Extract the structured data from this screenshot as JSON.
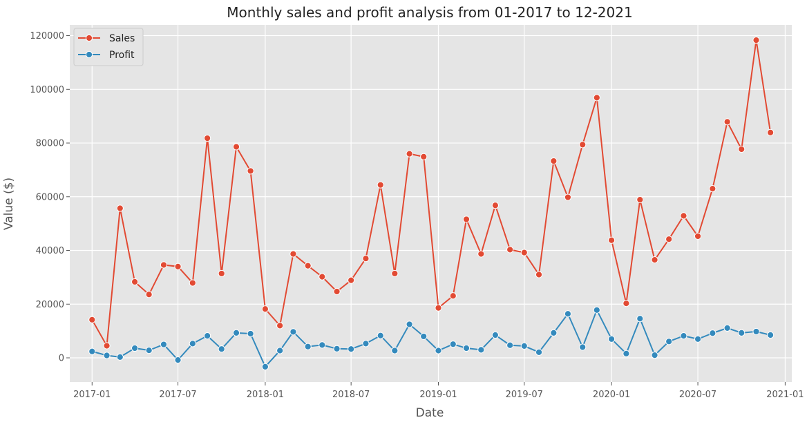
{
  "chart_data": {
    "type": "line",
    "title": "Monthly sales and profit analysis from 01-2017 to 12-2021",
    "xlabel": "Date",
    "ylabel": "Value ($)",
    "x_axis": {
      "kind": "date",
      "range": [
        "2016-11-15",
        "2021-01-15"
      ],
      "ticks": [
        "2017-01-01",
        "2017-07-01",
        "2018-01-01",
        "2018-07-01",
        "2019-01-01",
        "2019-07-01",
        "2020-01-01",
        "2020-07-01",
        "2021-01-01"
      ],
      "tick_labels": [
        "2017-01",
        "2017-07",
        "2018-01",
        "2018-07",
        "2019-01",
        "2019-07",
        "2020-01",
        "2020-07",
        "2021-01"
      ]
    },
    "y_axis": {
      "range": [
        -9000,
        124000
      ],
      "ticks": [
        0,
        20000,
        40000,
        60000,
        80000,
        100000,
        120000
      ],
      "tick_labels": [
        "0",
        "20000",
        "40000",
        "60000",
        "80000",
        "100000",
        "120000"
      ]
    },
    "grid": true,
    "legend": {
      "position": "top-left",
      "entries": [
        "Sales",
        "Profit"
      ]
    },
    "x": [
      "2017-01-01",
      "2017-02-01",
      "2017-03-01",
      "2017-04-01",
      "2017-05-01",
      "2017-06-01",
      "2017-07-01",
      "2017-08-01",
      "2017-09-01",
      "2017-10-01",
      "2017-11-01",
      "2017-12-01",
      "2018-01-01",
      "2018-02-01",
      "2018-03-01",
      "2018-04-01",
      "2018-05-01",
      "2018-06-01",
      "2018-07-01",
      "2018-08-01",
      "2018-09-01",
      "2018-10-01",
      "2018-11-01",
      "2018-12-01",
      "2019-01-01",
      "2019-02-01",
      "2019-03-01",
      "2019-04-01",
      "2019-05-01",
      "2019-06-01",
      "2019-07-01",
      "2019-08-01",
      "2019-09-01",
      "2019-10-01",
      "2019-11-01",
      "2019-12-01",
      "2020-01-01",
      "2020-02-01",
      "2020-03-01",
      "2020-04-01",
      "2020-05-01",
      "2020-06-01",
      "2020-07-01",
      "2020-08-01",
      "2020-09-01",
      "2020-10-01",
      "2020-11-01",
      "2020-12-01"
    ],
    "series": [
      {
        "name": "Sales",
        "color": "#e24a33",
        "values": [
          14200,
          4500,
          55700,
          28300,
          23600,
          34600,
          34000,
          27900,
          81800,
          31400,
          78600,
          69600,
          18200,
          12000,
          38700,
          34300,
          30200,
          24700,
          28900,
          37000,
          64400,
          31400,
          76000,
          74900,
          18600,
          23100,
          51600,
          38700,
          56800,
          40300,
          39200,
          31000,
          73300,
          59800,
          79400,
          96900,
          43800,
          20300,
          58900,
          36500,
          44200,
          52900,
          45300,
          63000,
          87900,
          77700,
          118300,
          83900
        ]
      },
      {
        "name": "Profit",
        "color": "#348abd",
        "values": [
          2400,
          900,
          300,
          3600,
          2800,
          5000,
          -800,
          5300,
          8200,
          3300,
          9300,
          9000,
          -3300,
          2700,
          9700,
          4200,
          4800,
          3400,
          3300,
          5300,
          8300,
          2700,
          12500,
          8000,
          2700,
          5100,
          3600,
          3000,
          8500,
          4700,
          4400,
          2100,
          9300,
          16400,
          4000,
          17800,
          7000,
          1600,
          14600,
          1000,
          6100,
          8200,
          7000,
          9200,
          11100,
          9300,
          9800,
          8500
        ]
      }
    ]
  }
}
